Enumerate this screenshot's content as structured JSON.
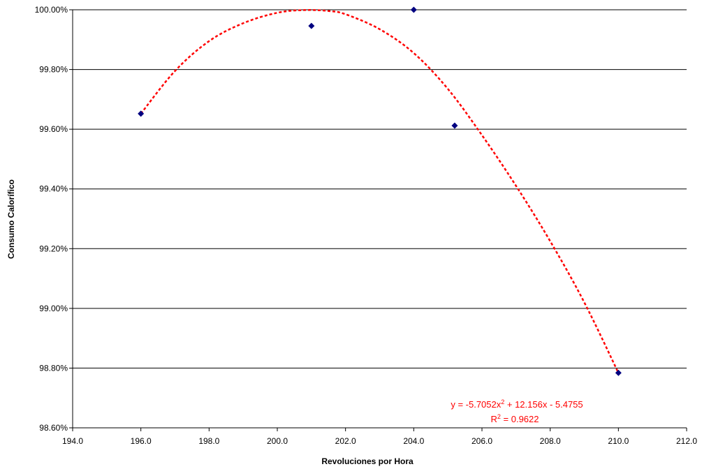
{
  "chart_data": {
    "type": "scatter",
    "title": "",
    "xlabel": "Revoluciones por Hora",
    "ylabel": "Consumo Calorífico",
    "xlim": [
      194.0,
      212.0
    ],
    "ylim": [
      0.986,
      1.0
    ],
    "x_ticks": [
      "194.0",
      "196.0",
      "198.0",
      "200.0",
      "202.0",
      "204.0",
      "206.0",
      "208.0",
      "210.0",
      "212.0"
    ],
    "y_ticks": [
      "98.60%",
      "98.80%",
      "99.00%",
      "99.20%",
      "99.40%",
      "99.60%",
      "99.80%",
      "100.00%"
    ],
    "grid": "horizontal",
    "legend": "none",
    "series": [
      {
        "marker": "diamond",
        "color": "#000080",
        "points": [
          {
            "x": 196.0,
            "y": 0.99652
          },
          {
            "x": 201.0,
            "y": 0.99946
          },
          {
            "x": 204.0,
            "y": 1.0
          },
          {
            "x": 205.2,
            "y": 0.99612
          },
          {
            "x": 210.0,
            "y": 0.98784
          }
        ]
      }
    ],
    "trendline": {
      "type": "polynomial-2",
      "color": "#ff0000",
      "style": "dotted",
      "points": [
        {
          "x": 196.0,
          "y": 0.99652
        },
        {
          "x": 197.0,
          "y": 0.99795
        },
        {
          "x": 198.0,
          "y": 0.99895
        },
        {
          "x": 199.0,
          "y": 0.99955
        },
        {
          "x": 200.0,
          "y": 0.9999
        },
        {
          "x": 200.8,
          "y": 0.99999
        },
        {
          "x": 201.5,
          "y": 0.99996
        },
        {
          "x": 202.0,
          "y": 0.99985
        },
        {
          "x": 203.0,
          "y": 0.99935
        },
        {
          "x": 204.0,
          "y": 0.99855
        },
        {
          "x": 205.0,
          "y": 0.99735
        },
        {
          "x": 206.0,
          "y": 0.9958
        },
        {
          "x": 207.0,
          "y": 0.9941
        },
        {
          "x": 208.0,
          "y": 0.99225
        },
        {
          "x": 209.0,
          "y": 0.9902
        },
        {
          "x": 210.0,
          "y": 0.98784
        }
      ],
      "equation": {
        "prefix": "y = -5.7052x",
        "exp": "2",
        "suffix": " + 12.156x - 5.4755"
      },
      "r2": {
        "prefix": "R",
        "exp": "2",
        "suffix": " = 0.9622"
      }
    }
  }
}
